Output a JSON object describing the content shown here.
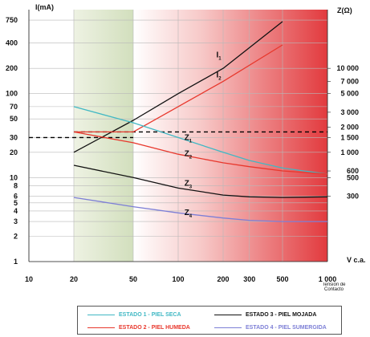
{
  "chart_data": {
    "type": "line",
    "x_axis": {
      "label": "V c.a.",
      "sublabel": "Tensión de Contacto",
      "scale": "log",
      "range": [
        10,
        1000
      ],
      "ticks": [
        10,
        20,
        50,
        100,
        200,
        300,
        500,
        1000
      ],
      "tick_labels": [
        "10",
        "20",
        "50",
        "100",
        "200",
        "300",
        "500",
        "1 000"
      ]
    },
    "y_left": {
      "label": "I(mA)",
      "scale": "log",
      "range": [
        1,
        1000
      ],
      "ticks": [
        1,
        2,
        3,
        4,
        5,
        6,
        8,
        10,
        20,
        30,
        50,
        70,
        100,
        200,
        400,
        750
      ],
      "tick_labels": [
        "1",
        "2",
        "3",
        "4",
        "5",
        "6",
        "8",
        "10",
        "20",
        "30",
        "50",
        "70",
        "100",
        "200",
        "400",
        "750"
      ]
    },
    "y_right": {
      "label": "Z(Ω)",
      "scale": "log",
      "ticks": [
        300,
        500,
        600,
        1000,
        1500,
        2000,
        3000,
        5000,
        7000,
        10000
      ],
      "tick_labels": [
        "300",
        "500",
        "600",
        "1 000",
        "1 500",
        "2 000",
        "3 000",
        "5 000",
        "7 000",
        "10 000"
      ]
    },
    "grid": true,
    "background_zones": [
      {
        "from": 20,
        "to": 50,
        "color": "#d9e4c4"
      },
      {
        "from": 50,
        "to": 1000,
        "gradient": [
          "#ffffff",
          "#e23a3e"
        ]
      }
    ],
    "dashed_reference_lines": [
      {
        "y_left": 30,
        "x_from": 10,
        "x_to": 50,
        "color": "#000000"
      },
      {
        "y_left": 35,
        "x_from": 20,
        "x_to": 1000,
        "color": "#000000"
      }
    ],
    "series": [
      {
        "label": "I",
        "sub": "1",
        "color": "#111111",
        "x": [
          20,
          50,
          100,
          200,
          500
        ],
        "y": [
          20,
          48,
          100,
          200,
          720
        ]
      },
      {
        "label": "I",
        "sub": "2",
        "color": "#e8382d",
        "x": [
          20,
          50,
          100,
          200,
          500
        ],
        "y": [
          35,
          35,
          70,
          140,
          380
        ]
      },
      {
        "label": "Z",
        "sub": "1",
        "color": "#41b8c4",
        "x": [
          20,
          50,
          100,
          200,
          300,
          500,
          1000
        ],
        "y": [
          70,
          45,
          30,
          20,
          16,
          13,
          11
        ]
      },
      {
        "label": "Z",
        "sub": "2",
        "color": "#e8382d",
        "x": [
          20,
          50,
          100,
          200,
          300,
          500,
          1000
        ],
        "y": [
          35,
          26,
          19,
          15,
          13.5,
          12,
          11
        ]
      },
      {
        "label": "Z",
        "sub": "3",
        "color": "#111111",
        "x": [
          20,
          50,
          100,
          200,
          300,
          500,
          1000
        ],
        "y": [
          14,
          10,
          7.5,
          6.2,
          5.9,
          5.8,
          5.9
        ]
      },
      {
        "label": "Z",
        "sub": "4",
        "color": "#7d7fd6",
        "x": [
          20,
          50,
          100,
          200,
          300,
          500,
          1000
        ],
        "y": [
          5.8,
          4.5,
          3.8,
          3.3,
          3.1,
          3.0,
          3.0
        ]
      }
    ],
    "curve_labels": [
      {
        "main": "I",
        "sub": "1",
        "x": 180,
        "y": 270
      },
      {
        "main": "I",
        "sub": "2",
        "x": 180,
        "y": 155
      },
      {
        "main": "Z",
        "sub": "1",
        "x": 110,
        "y": 28
      },
      {
        "main": "Z",
        "sub": "2",
        "x": 110,
        "y": 18
      },
      {
        "main": "Z",
        "sub": "3",
        "x": 110,
        "y": 8
      },
      {
        "main": "Z",
        "sub": "4",
        "x": 110,
        "y": 3.6
      }
    ]
  },
  "legend": {
    "items": [
      {
        "label": "ESTADO 1 - PIEL SECA",
        "color": "#41b8c4"
      },
      {
        "label": "ESTADO 3 - PIEL MOJADA",
        "color": "#111111"
      },
      {
        "label": "ESTADO 2 - PIEL HUMEDA",
        "color": "#e8382d"
      },
      {
        "label": "ESTADO 4 - PIEL SUMERGIDA",
        "color": "#7d7fd6"
      }
    ]
  }
}
